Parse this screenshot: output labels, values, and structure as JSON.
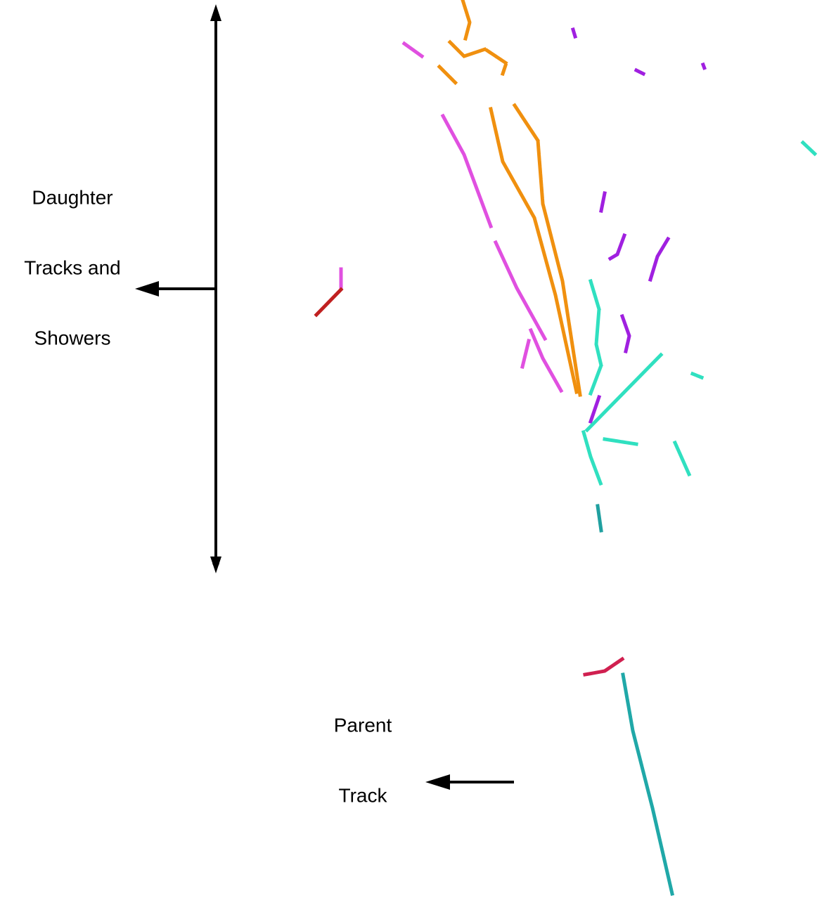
{
  "labels": {
    "daughter": [
      "Daughter",
      "Tracks and",
      "Showers"
    ],
    "parent": [
      "Parent",
      "Track"
    ]
  }
}
